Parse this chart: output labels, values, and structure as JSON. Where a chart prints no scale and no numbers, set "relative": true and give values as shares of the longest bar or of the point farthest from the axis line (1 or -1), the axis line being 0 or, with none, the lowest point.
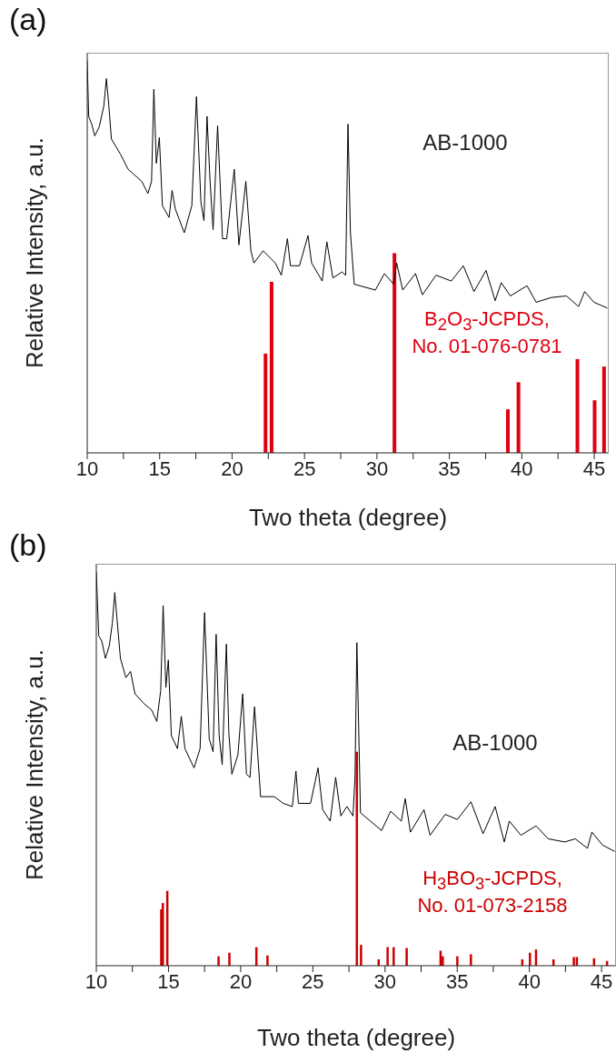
{
  "chart_data": [
    {
      "type": "line",
      "title": "(a)",
      "xlabel": "Two theta (degree)",
      "ylabel": "Relative Intensity, a.u.",
      "relative": true,
      "xlim": [
        10,
        46
      ],
      "xticks": [
        10,
        {
          "value": 12.5,
          "label": null
        },
        15,
        {
          "value": 17.5,
          "label": null
        },
        20,
        {
          "value": 22.5,
          "label": null
        },
        25,
        {
          "value": 27.5,
          "label": null
        },
        30,
        {
          "value": 32.5,
          "label": null
        },
        35,
        {
          "value": 37.5,
          "label": null
        },
        40,
        {
          "value": 42.5,
          "label": null
        },
        45
      ],
      "tick_labels": "x",
      "annotations": [
        "AB-1000",
        "B$_{2}$O$_{3}$-JCPDS, No. 01-076-0781"
      ],
      "series": [
        {
          "color": "#000000",
          "x": [
            10.0,
            10.1,
            10.31,
            10.52,
            10.83,
            11.15,
            11.32,
            11.46,
            11.67,
            12.3,
            12.82,
            13.77,
            14.19,
            14.44,
            14.6,
            14.77,
            14.98,
            15.19,
            15.65,
            15.86,
            16.07,
            16.7,
            17.22,
            17.54,
            17.85,
            18.06,
            18.27,
            18.48,
            18.69,
            19.0,
            19.34,
            19.63,
            20.15,
            20.47,
            20.95,
            21.3,
            21.51,
            22.14,
            22.98,
            23.4,
            23.82,
            24.03,
            24.65,
            25.24,
            25.49,
            26.22,
            26.54,
            26.96,
            27.59,
            27.84,
            28.0,
            28.17,
            28.43,
            29.89,
            30.52,
            31.15,
            31.36,
            31.78,
            32.66,
            33.14,
            34.08,
            35.13,
            35.96,
            36.7,
            37.53,
            38.16,
            38.58,
            39.21,
            40.36,
            40.99,
            42.04,
            43.08,
            43.92,
            44.34,
            44.97,
            45.91
          ],
          "values": [
            1.0,
            0.858,
            0.838,
            0.808,
            0.831,
            0.885,
            0.954,
            0.9,
            0.8,
            0.761,
            0.723,
            0.692,
            0.661,
            0.692,
            0.927,
            0.738,
            0.804,
            0.63,
            0.6,
            0.669,
            0.623,
            0.561,
            0.63,
            0.908,
            0.638,
            0.592,
            0.858,
            0.692,
            0.569,
            0.834,
            0.546,
            0.546,
            0.723,
            0.53,
            0.692,
            0.515,
            0.484,
            0.515,
            0.484,
            0.453,
            0.546,
            0.477,
            0.477,
            0.554,
            0.484,
            0.438,
            0.538,
            0.446,
            0.461,
            0.453,
            0.838,
            0.561,
            0.43,
            0.415,
            0.457,
            0.43,
            0.484,
            0.415,
            0.457,
            0.403,
            0.453,
            0.438,
            0.477,
            0.411,
            0.465,
            0.388,
            0.434,
            0.4,
            0.426,
            0.384,
            0.396,
            0.4,
            0.373,
            0.411,
            0.384,
            0.369
          ]
        },
        {
          "type": "bar",
          "color": "#e00010",
          "x": [
            22.31,
            22.73,
            31.21,
            39.04,
            39.77,
            43.84,
            45.03,
            45.68
          ],
          "values": [
            0.253,
            0.436,
            0.509,
            0.111,
            0.18,
            0.239,
            0.134,
            0.22
          ]
        }
      ]
    },
    {
      "type": "line",
      "title": "(b)",
      "xlabel": "Two theta (degree)",
      "ylabel": "Relative Intensity, a.u.",
      "relative": true,
      "xlim": [
        10,
        46
      ],
      "xticks": [
        10,
        {
          "value": 12.5,
          "label": null
        },
        15,
        {
          "value": 17.5,
          "label": null
        },
        20,
        {
          "value": 22.5,
          "label": null
        },
        25,
        {
          "value": 27.5,
          "label": null
        },
        30,
        {
          "value": 32.5,
          "label": null
        },
        35,
        {
          "value": 37.5,
          "label": null
        },
        40,
        {
          "value": 42.5,
          "label": null
        },
        45
      ],
      "tick_labels": "x",
      "annotations": [
        "AB-1000",
        "H$_{3}$BO$_{3}$-JCPDS, No. 01-073-2158"
      ],
      "series": [
        {
          "color": "#000000",
          "x": [
            10.0,
            10.17,
            10.38,
            10.63,
            10.9,
            11.11,
            11.28,
            11.42,
            11.67,
            12.05,
            12.37,
            12.68,
            13.31,
            13.83,
            14.19,
            14.46,
            14.63,
            14.82,
            14.99,
            15.2,
            15.62,
            15.89,
            16.14,
            16.77,
            17.19,
            17.5,
            17.82,
            18.09,
            18.3,
            18.51,
            18.72,
            19.01,
            19.18,
            19.39,
            19.81,
            20.14,
            20.4,
            20.65,
            20.96,
            21.38,
            22.33,
            22.95,
            23.58,
            23.83,
            24.0,
            24.84,
            25.36,
            25.68,
            26.2,
            26.58,
            26.94,
            27.36,
            27.78,
            27.92,
            28.05,
            28.3,
            29.76,
            30.39,
            31.13,
            31.4,
            31.76,
            32.7,
            33.12,
            34.17,
            35.01,
            35.95,
            36.79,
            37.63,
            38.26,
            38.61,
            39.41,
            40.46,
            41.3,
            42.45,
            43.18,
            44.02,
            44.33,
            45.07,
            45.91
          ],
          "values": [
            1.0,
            0.837,
            0.824,
            0.78,
            0.812,
            0.869,
            0.947,
            0.886,
            0.78,
            0.731,
            0.747,
            0.69,
            0.665,
            0.649,
            0.62,
            0.698,
            0.914,
            0.706,
            0.776,
            0.584,
            0.551,
            0.633,
            0.551,
            0.502,
            0.551,
            0.896,
            0.576,
            0.543,
            0.841,
            0.584,
            0.51,
            0.816,
            0.592,
            0.486,
            0.535,
            0.69,
            0.486,
            0.478,
            0.657,
            0.429,
            0.429,
            0.412,
            0.404,
            0.494,
            0.412,
            0.412,
            0.502,
            0.396,
            0.367,
            0.478,
            0.38,
            0.404,
            0.38,
            0.478,
            0.82,
            0.388,
            0.343,
            0.392,
            0.367,
            0.424,
            0.339,
            0.396,
            0.331,
            0.384,
            0.371,
            0.416,
            0.335,
            0.404,
            0.314,
            0.367,
            0.331,
            0.355,
            0.322,
            0.314,
            0.322,
            0.298,
            0.339,
            0.306,
            0.29
          ]
        },
        {
          "type": "bar",
          "color": "#cc0000",
          "x": [
            14.5,
            14.61,
            14.92,
            18.47,
            19.22,
            21.09,
            21.86,
            28.05,
            28.34,
            29.56,
            30.18,
            30.6,
            31.5,
            33.85,
            34.0,
            35.01,
            35.95,
            39.51,
            40.04,
            40.46,
            41.67,
            43.08,
            43.29,
            44.48,
            45.38
          ],
          "values": [
            0.143,
            0.159,
            0.19,
            0.024,
            0.033,
            0.047,
            0.026,
            0.543,
            0.053,
            0.016,
            0.047,
            0.047,
            0.045,
            0.038,
            0.024,
            0.024,
            0.029,
            0.016,
            0.033,
            0.041,
            0.016,
            0.022,
            0.022,
            0.019,
            0.012
          ]
        }
      ]
    }
  ]
}
